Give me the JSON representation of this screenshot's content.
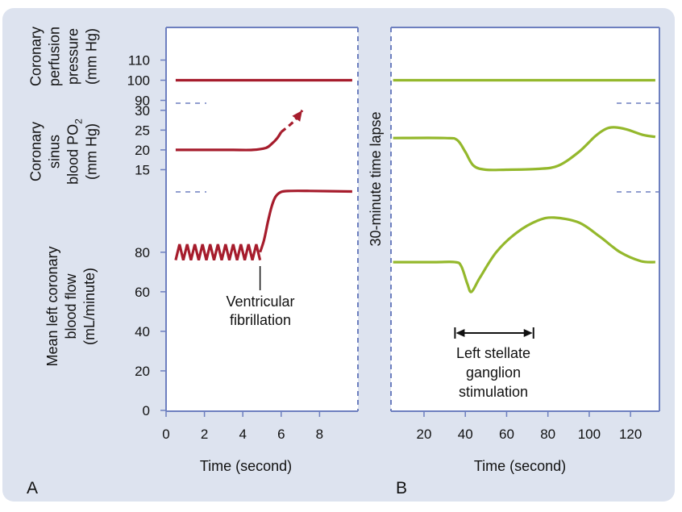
{
  "chart_data": [
    {
      "panel": "A",
      "type": "line",
      "line_color": "#a61c2c",
      "xlabel": "Time (second)",
      "xlim": [
        0,
        10
      ],
      "x_ticks": [
        0,
        2,
        4,
        6,
        8
      ],
      "x_tick_labels": [
        "0",
        "2",
        "4",
        "6",
        "8"
      ],
      "subplots": [
        {
          "name": "coronary-perfusion-pressure",
          "ylabel_lines": [
            "Coronary",
            "perfusion",
            "pressure",
            "(mm Hg)"
          ],
          "ylim": [
            85,
            115
          ],
          "y_ticks": [
            90,
            100,
            110
          ],
          "y_tick_labels": [
            "90",
            "100",
            "110"
          ],
          "series": [
            {
              "name": "pressure",
              "x": [
                0.5,
                9.7
              ],
              "y": [
                100,
                100
              ]
            }
          ]
        },
        {
          "name": "coronary-sinus-blood-po2",
          "ylabel_lines": [
            "Coronary",
            "sinus",
            "blood PO2",
            "(mm Hg)"
          ],
          "ylim": [
            10,
            32
          ],
          "y_ticks": [
            15,
            20,
            25,
            30
          ],
          "y_tick_labels": [
            "15",
            "20",
            "25",
            "30"
          ],
          "series": [
            {
              "name": "po2",
              "x": [
                0.5,
                1.5,
                2.5,
                3.5,
                4.5,
                5.2,
                5.5,
                5.8,
                6.0
              ],
              "y": [
                20,
                20,
                20,
                20,
                20,
                20.5,
                21.5,
                23,
                24.5
              ]
            },
            {
              "name": "po2-projected",
              "style": "dashed-arrow",
              "x": [
                6.0,
                6.5,
                6.8,
                7.1
              ],
              "y": [
                24.5,
                26.5,
                28,
                30
              ]
            }
          ]
        },
        {
          "name": "mean-left-coronary-blood-flow",
          "ylabel_lines": [
            "Mean left coronary",
            "blood flow",
            "(mL/minute)"
          ],
          "ylim": [
            0,
            115
          ],
          "y_ticks": [
            0,
            20,
            40,
            60,
            80
          ],
          "y_tick_labels": [
            "0",
            "20",
            "40",
            "60",
            "80"
          ],
          "series": [
            {
              "name": "flow-oscillation",
              "style": "zigzag",
              "x": [
                0.5,
                4.9
              ],
              "amplitude": [
                76,
                84
              ]
            },
            {
              "name": "flow",
              "x": [
                4.9,
                5.1,
                5.3,
                5.5,
                5.7,
                6.0,
                6.5,
                7.5,
                9.7
              ],
              "y": [
                80,
                86,
                95,
                103,
                108,
                110.5,
                111,
                111,
                110.7
              ]
            }
          ]
        }
      ],
      "annotations": [
        {
          "text_lines": [
            "Ventricular",
            "fibrillation"
          ],
          "x": 4.9
        }
      ],
      "panel_label": "A"
    },
    {
      "panel": "B",
      "type": "line",
      "line_color": "#94b82c",
      "xlabel": "Time (second)",
      "xlim": [
        4,
        134
      ],
      "x_ticks": [
        20,
        40,
        60,
        80,
        100,
        120
      ],
      "x_tick_labels": [
        "20",
        "40",
        "60",
        "80",
        "100",
        "120"
      ],
      "time_lapse_label": "30-minute time lapse",
      "series": [
        {
          "name": "coronary-perfusion-pressure",
          "x": [
            5,
            132
          ],
          "y": [
            100,
            100
          ]
        },
        {
          "name": "coronary-sinus-blood-po2",
          "x": [
            5,
            30,
            36,
            40,
            44,
            50,
            60,
            75,
            85,
            95,
            103,
            108,
            112,
            118,
            126,
            132
          ],
          "y": [
            23,
            23,
            22.5,
            19.5,
            16,
            15,
            15,
            15.2,
            16,
            19.5,
            23.5,
            25.3,
            25.7,
            25.2,
            23.8,
            23.3
          ]
        },
        {
          "name": "mean-left-coronary-blood-flow",
          "x": [
            5,
            25,
            35,
            38,
            41,
            43,
            47,
            55,
            65,
            75,
            83,
            95,
            105,
            115,
            125,
            132
          ],
          "y": [
            75,
            75,
            75,
            73,
            64,
            60,
            67,
            80,
            90,
            96,
            97.5,
            95,
            88,
            80,
            75.5,
            75
          ]
        }
      ],
      "annotations": [
        {
          "text_lines": [
            "Left stellate",
            "ganglion",
            "stimulation"
          ],
          "x_range": [
            35,
            73
          ]
        }
      ],
      "panel_label": "B"
    }
  ]
}
